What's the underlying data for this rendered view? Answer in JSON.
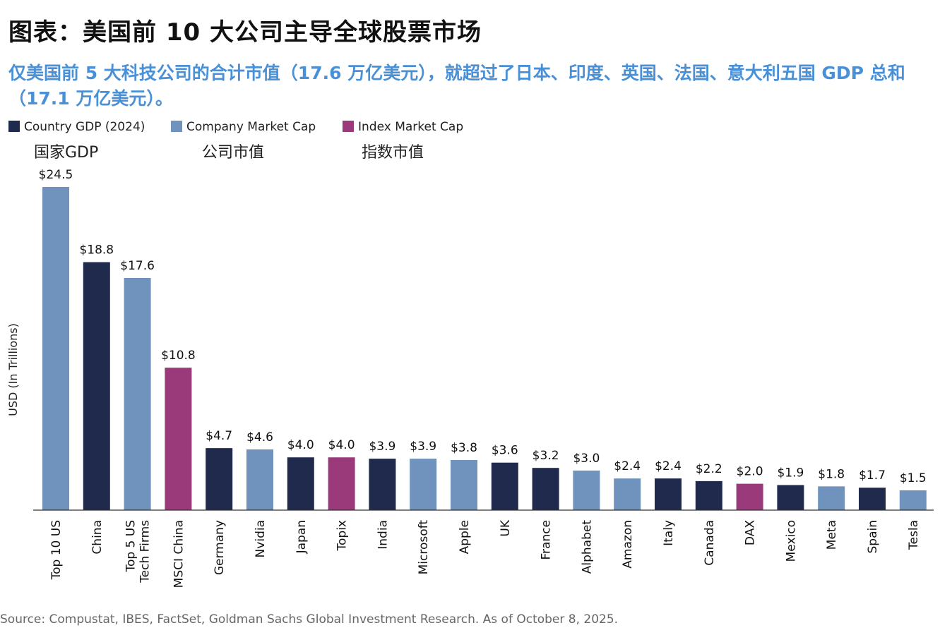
{
  "title": "图表：美国前 10 大公司主导全球股票市场",
  "subtitle": "仅美国前 5 大科技公司的合计市值（17.6 万亿美元），就超过了日本、印度、英国、法国、意大利五国 GDP 总和（17.1 万亿美元）。",
  "legend": [
    {
      "label": "Country GDP (2024)",
      "label_zh": "国家GDP",
      "color": "#1f2a4d"
    },
    {
      "label": "Company Market Cap",
      "label_zh": "公司市值",
      "color": "#6f93bd"
    },
    {
      "label": "Index Market Cap",
      "label_zh": "指数市值",
      "color": "#9b3a7a"
    }
  ],
  "source": "Source: Compustat, IBES, FactSet, Goldman Sachs Global Investment Research. As of October 8, 2025.",
  "chart_data": {
    "type": "bar",
    "title": "",
    "xlabel": "",
    "ylabel": "USD (In Trillions)",
    "ylim": [
      0,
      24.5
    ],
    "categories": [
      "Top 10 US",
      "China",
      "Top 5 US Tech Firms",
      "MSCI China",
      "Germany",
      "Nvidia",
      "Japan",
      "Topix",
      "India",
      "Microsoft",
      "Apple",
      "UK",
      "France",
      "Alphabet",
      "Amazon",
      "Italy",
      "Canada",
      "DAX",
      "Mexico",
      "Meta",
      "Spain",
      "Tesla"
    ],
    "category_lines": [
      [
        "Top 10 US"
      ],
      [
        "China"
      ],
      [
        "Top 5 US",
        "Tech Firms"
      ],
      [
        "MSCI China"
      ],
      [
        "Germany"
      ],
      [
        "Nvidia"
      ],
      [
        "Japan"
      ],
      [
        "Topix"
      ],
      [
        "India"
      ],
      [
        "Microsoft"
      ],
      [
        "Apple"
      ],
      [
        "UK"
      ],
      [
        "France"
      ],
      [
        "Alphabet"
      ],
      [
        "Amazon"
      ],
      [
        "Italy"
      ],
      [
        "Canada"
      ],
      [
        "DAX"
      ],
      [
        "Mexico"
      ],
      [
        "Meta"
      ],
      [
        "Spain"
      ],
      [
        "Tesla"
      ]
    ],
    "values": [
      24.5,
      18.8,
      17.6,
      10.8,
      4.7,
      4.6,
      4.0,
      4.0,
      3.9,
      3.9,
      3.8,
      3.6,
      3.2,
      3.0,
      2.4,
      2.4,
      2.2,
      2.0,
      1.9,
      1.8,
      1.7,
      1.5
    ],
    "value_labels": [
      "$24.5",
      "$18.8",
      "$17.6",
      "$10.8",
      "$4.7",
      "$4.6",
      "$4.0",
      "$4.0",
      "$3.9",
      "$3.9",
      "$3.8",
      "$3.6",
      "$3.2",
      "$3.0",
      "$2.4",
      "$2.4",
      "$2.2",
      "$2.0",
      "$1.9",
      "$1.8",
      "$1.7",
      "$1.5"
    ],
    "series_type": [
      "Company Market Cap",
      "Country GDP (2024)",
      "Company Market Cap",
      "Index Market Cap",
      "Country GDP (2024)",
      "Company Market Cap",
      "Country GDP (2024)",
      "Index Market Cap",
      "Country GDP (2024)",
      "Company Market Cap",
      "Company Market Cap",
      "Country GDP (2024)",
      "Country GDP (2024)",
      "Company Market Cap",
      "Company Market Cap",
      "Country GDP (2024)",
      "Country GDP (2024)",
      "Index Market Cap",
      "Country GDP (2024)",
      "Company Market Cap",
      "Country GDP (2024)",
      "Company Market Cap"
    ],
    "grid": false,
    "legend_position": "top-left"
  }
}
